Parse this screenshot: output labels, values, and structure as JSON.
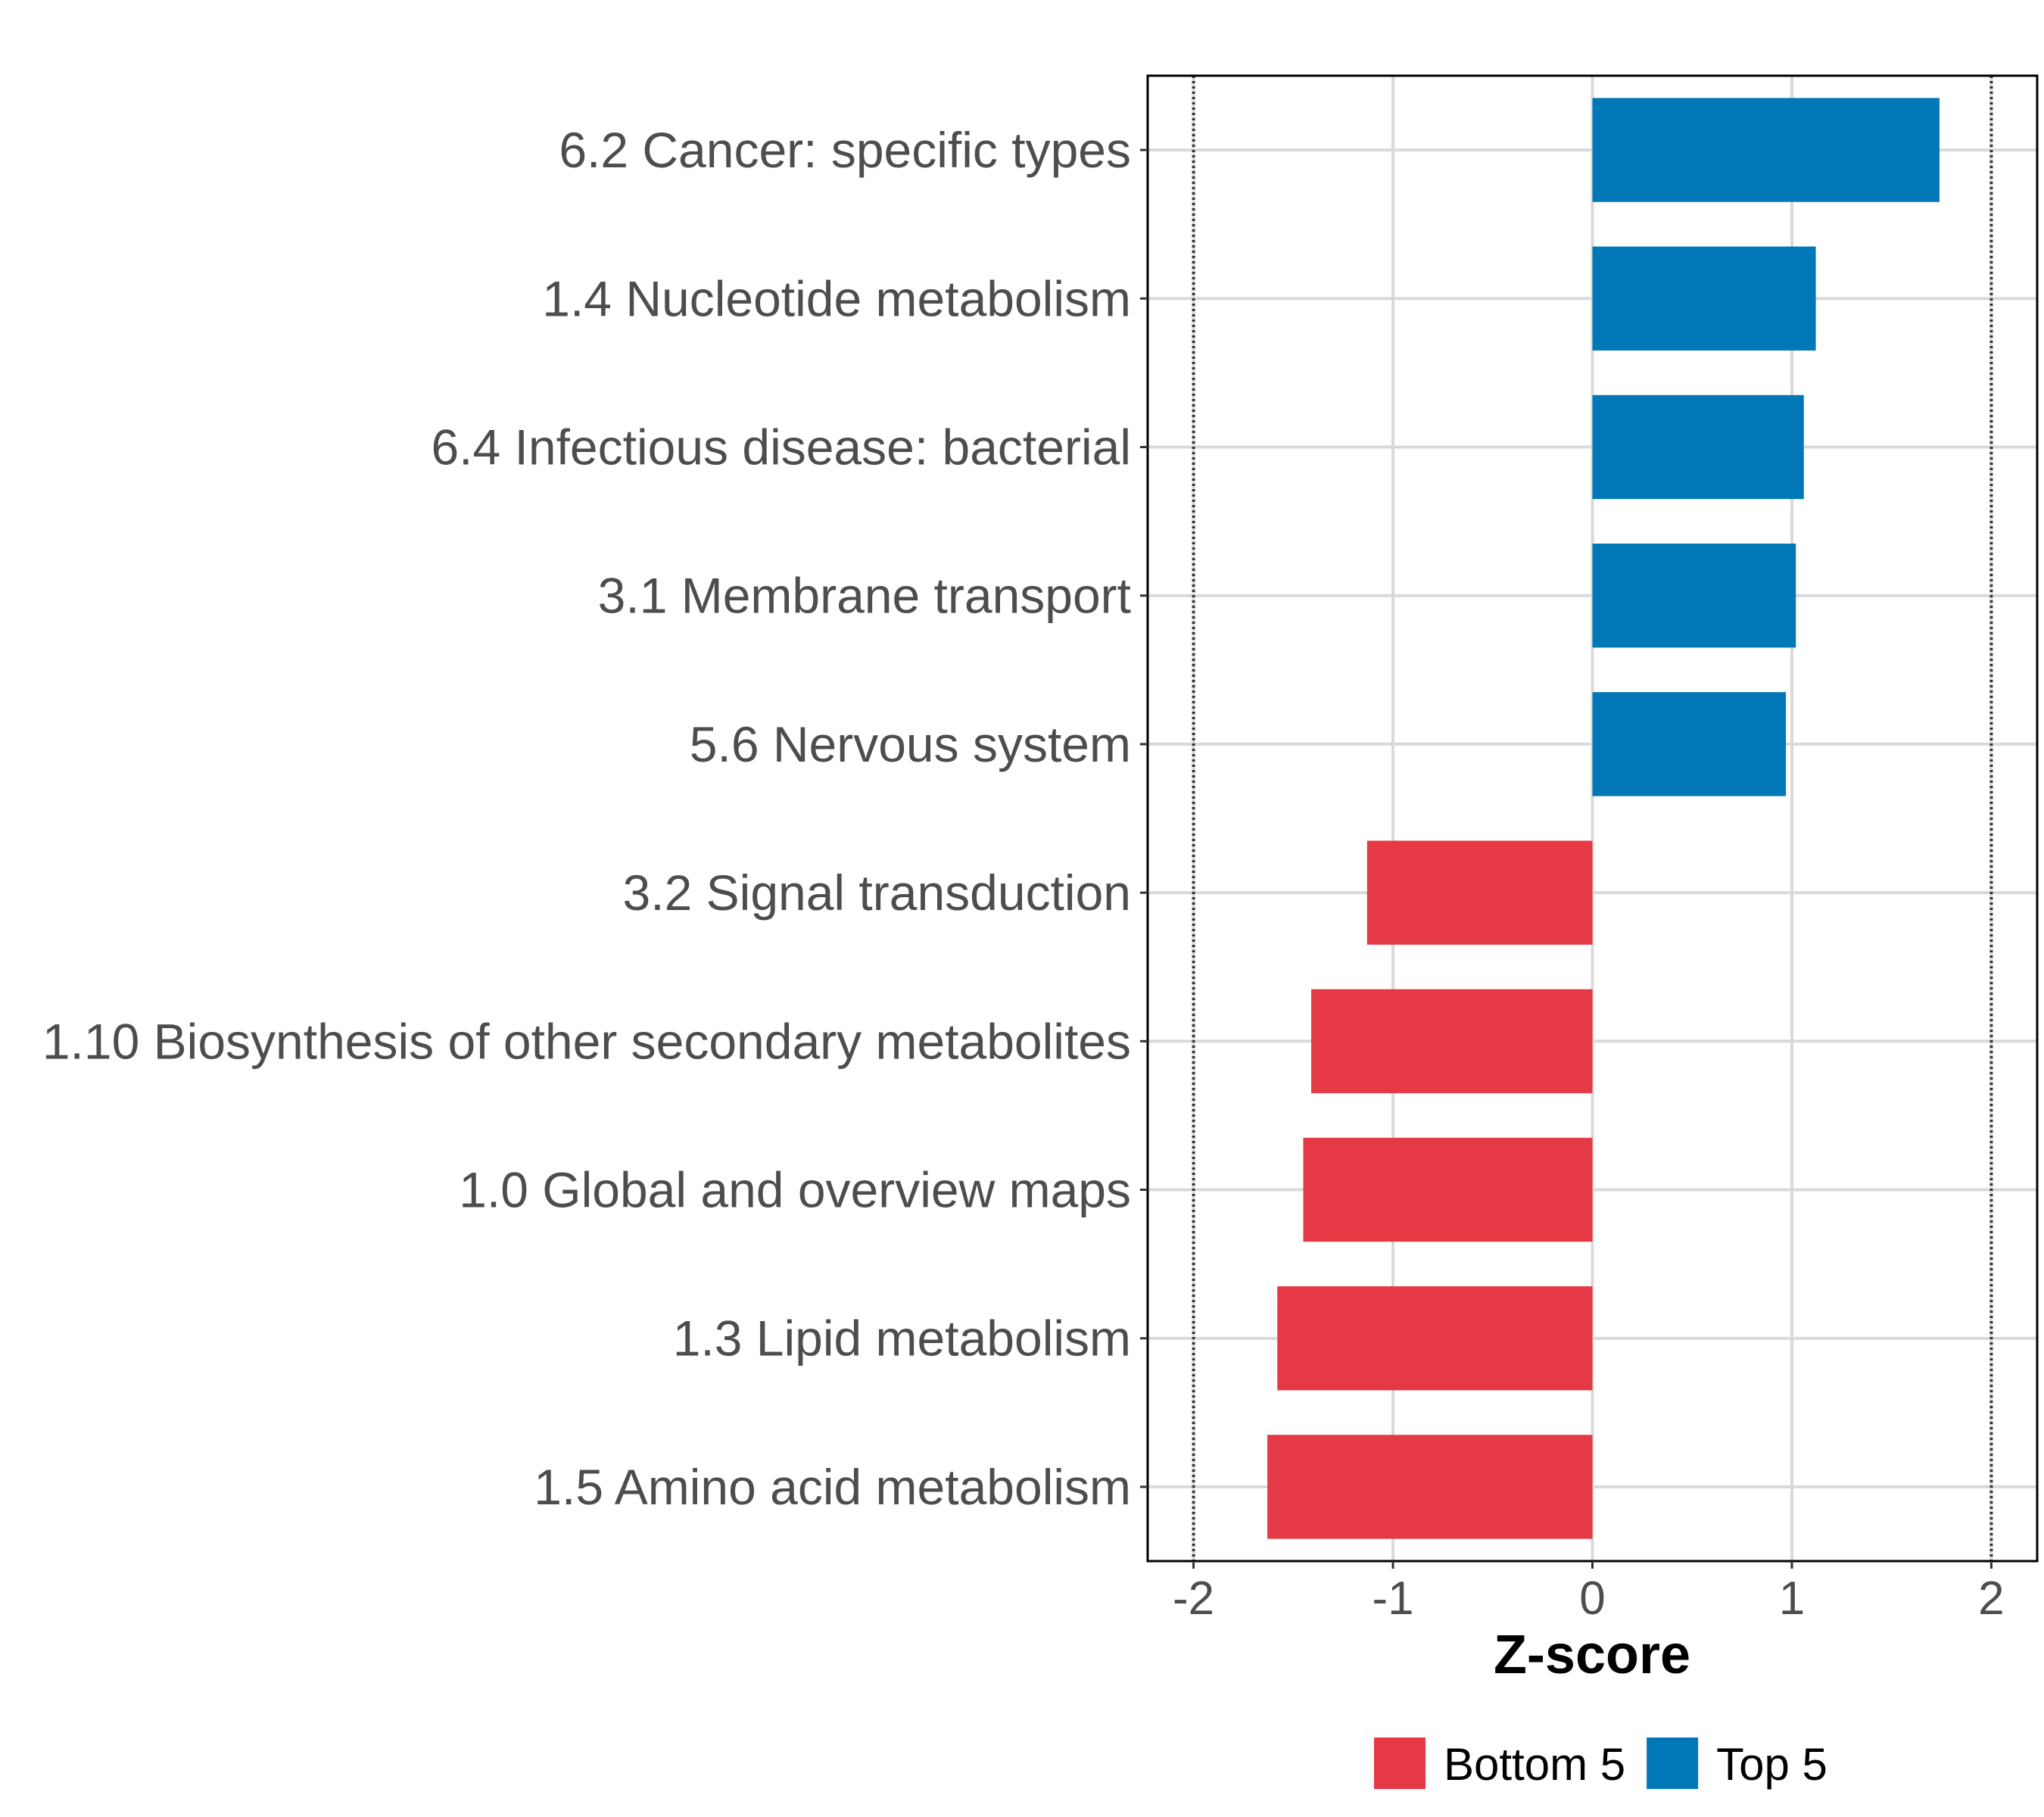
{
  "chart_data": {
    "type": "bar",
    "orientation": "horizontal",
    "xlabel": "Z-score",
    "ylabel": "",
    "xlim": [
      -2.23,
      2.23
    ],
    "xticks": [
      -2,
      -1,
      0,
      1,
      2
    ],
    "xtick_labels": [
      "-2",
      "-1",
      "0",
      "1",
      "2"
    ],
    "reference_lines": [
      -2,
      2
    ],
    "grid": true,
    "legend_position": "bottom",
    "bars": [
      {
        "label": "6.2 Cancer: specific types",
        "value": 1.74,
        "group": "Top 5"
      },
      {
        "label": "1.4 Nucleotide metabolism",
        "value": 1.12,
        "group": "Top 5"
      },
      {
        "label": "6.4 Infectious disease: bacterial",
        "value": 1.06,
        "group": "Top 5"
      },
      {
        "label": "3.1 Membrane transport",
        "value": 1.02,
        "group": "Top 5"
      },
      {
        "label": "5.6 Nervous system",
        "value": 0.97,
        "group": "Top 5"
      },
      {
        "label": "3.2 Signal transduction",
        "value": -1.13,
        "group": "Bottom 5"
      },
      {
        "label": "1.10 Biosynthesis of other secondary metabolites",
        "value": -1.41,
        "group": "Bottom 5"
      },
      {
        "label": "1.0 Global and overview maps",
        "value": -1.45,
        "group": "Bottom 5"
      },
      {
        "label": "1.3 Lipid metabolism",
        "value": -1.58,
        "group": "Bottom 5"
      },
      {
        "label": "1.5 Amino acid metabolism",
        "value": -1.63,
        "group": "Bottom 5"
      }
    ],
    "legend": [
      {
        "name": "Bottom 5",
        "color": "#e63946"
      },
      {
        "name": "Top 5",
        "color": "#0077b6"
      }
    ]
  }
}
